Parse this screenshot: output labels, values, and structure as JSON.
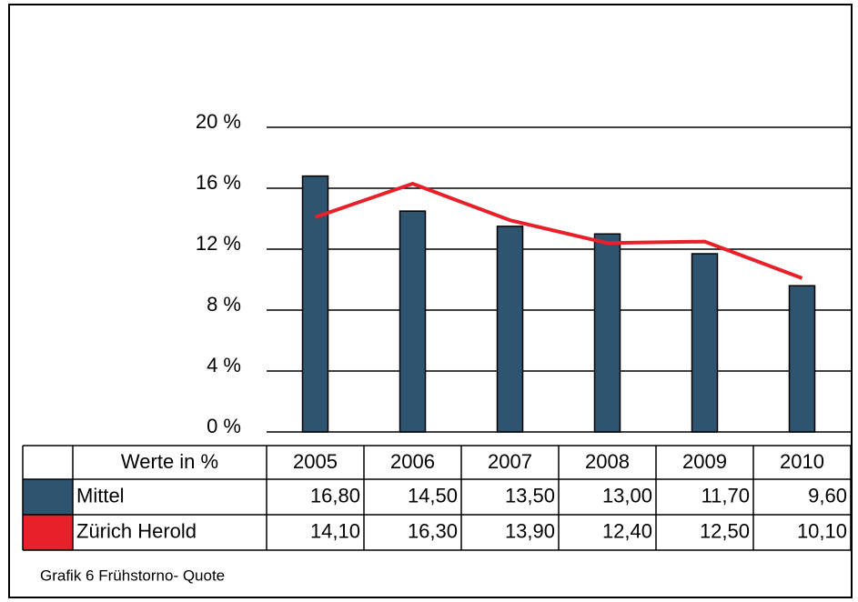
{
  "chart_data": {
    "type": "bar",
    "categories": [
      "2005",
      "2006",
      "2007",
      "2008",
      "2009",
      "2010"
    ],
    "table_header": "Werte in %",
    "series": [
      {
        "name": "Mittel",
        "type": "bar",
        "color": "#2f5470",
        "values": [
          16.8,
          14.5,
          13.5,
          13.0,
          11.7,
          9.6
        ],
        "value_labels": [
          "16,80",
          "14,50",
          "13,50",
          "13,00",
          "11,70",
          "9,60"
        ]
      },
      {
        "name": "Zürich Herold",
        "type": "line",
        "color": "#e8202a",
        "values": [
          14.1,
          16.3,
          13.9,
          12.4,
          12.5,
          10.1
        ],
        "value_labels": [
          "14,10",
          "16,30",
          "13,90",
          "12,40",
          "12,50",
          "10,10"
        ]
      }
    ],
    "ylim": [
      0,
      20
    ],
    "yticks": [
      {
        "value": 0,
        "label": "0 %"
      },
      {
        "value": 4,
        "label": "4 %"
      },
      {
        "value": 8,
        "label": "8 %"
      },
      {
        "value": 12,
        "label": "12 %"
      },
      {
        "value": 16,
        "label": "16 %"
      },
      {
        "value": 20,
        "label": "20 %"
      }
    ],
    "grid": true,
    "caption": "Grafik 6 Frühstorno- Quote"
  }
}
